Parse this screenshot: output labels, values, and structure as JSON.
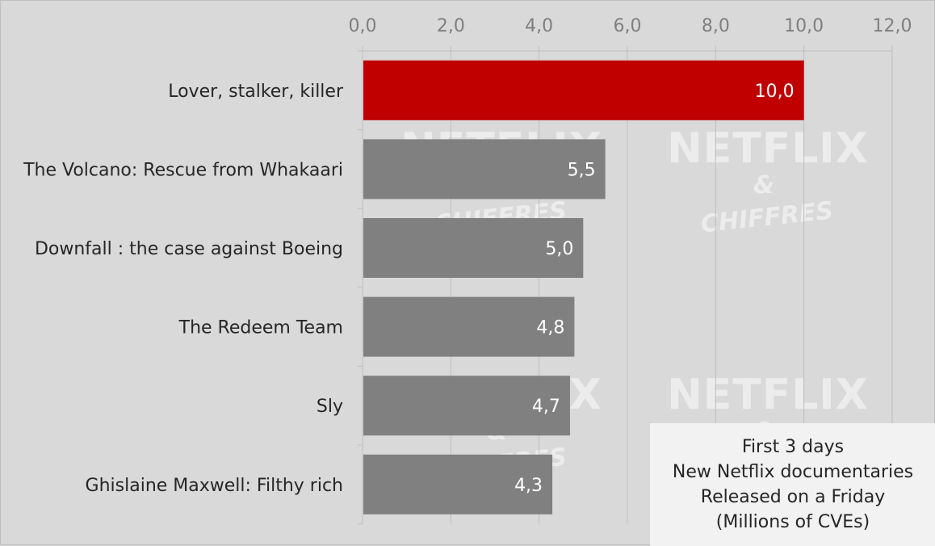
{
  "chart_data": {
    "type": "bar",
    "orientation": "horizontal",
    "categories": [
      "Lover, stalker, killer",
      "The Volcano: Rescue from Whakaari",
      "Downfall : the case against Boeing",
      "The Redeem Team",
      "Sly",
      "Ghislaine Maxwell: Filthy rich"
    ],
    "values": [
      10.0,
      5.5,
      5.0,
      4.8,
      4.7,
      4.3
    ],
    "value_labels": [
      "10,0",
      "5,5",
      "5,0",
      "4,8",
      "4,7",
      "4,3"
    ],
    "bar_colors": [
      "#c00000",
      "#808080",
      "#808080",
      "#808080",
      "#808080",
      "#808080"
    ],
    "xlim": [
      0,
      12
    ],
    "x_ticks": [
      0,
      2,
      4,
      6,
      8,
      10,
      12
    ],
    "x_tick_labels": [
      "0,0",
      "2,0",
      "4,0",
      "6,0",
      "8,0",
      "10,0",
      "12,0"
    ],
    "x_axis_position": "top",
    "grid": true,
    "annotation_lines": [
      "First 3 days",
      "New Netflix documentaries",
      "Released on a Friday",
      "(Millions of CVEs)"
    ]
  },
  "watermark": {
    "brand": "NETFLIX",
    "amp": "&",
    "sub": "CHIFFRES"
  },
  "colors": {
    "background": "#d9d9d9",
    "highlight_bar": "#c00000",
    "default_bar": "#808080",
    "grid": "#bfbfbf",
    "box": "#f2f2f2"
  }
}
